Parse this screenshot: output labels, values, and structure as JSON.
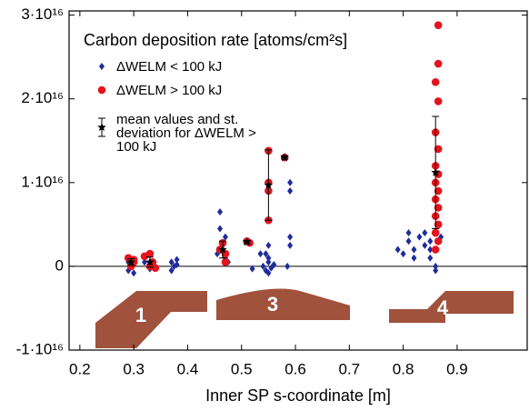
{
  "chart_data": {
    "type": "scatter",
    "title": "Carbon deposition rate [atoms/cm²s]",
    "x_label": "Inner SP s-coordinate [m]",
    "xlim": [
      0.18,
      1.03
    ],
    "xticks": [
      0.2,
      0.3,
      0.4,
      0.5,
      0.6,
      0.7,
      0.8,
      0.9
    ],
    "ylim": [
      -1e+16,
      3.05e+16
    ],
    "yticks": [
      {
        "value": -1e+16,
        "label": "-1·10¹⁶"
      },
      0,
      {
        "value": 1e+16,
        "label": "1·10¹⁶"
      },
      {
        "value": 2e+16,
        "label": "2·10¹⁶"
      },
      {
        "value": 3e+16,
        "label": "3·10¹⁶"
      }
    ],
    "annotations": [
      "1",
      "3",
      "4"
    ],
    "series": [
      {
        "name": "ΔWELM < 100 kJ",
        "color": "#1f2c9c",
        "marker": "diamond",
        "x": [
          0.29,
          0.29,
          0.3,
          0.3,
          0.295,
          0.32,
          0.33,
          0.335,
          0.37,
          0.37,
          0.38,
          0.38,
          0.375,
          0.46,
          0.46,
          0.465,
          0.47,
          0.47,
          0.475,
          0.455,
          0.51,
          0.52,
          0.54,
          0.545,
          0.55,
          0.55,
          0.555,
          0.55,
          0.545,
          0.56,
          0.55,
          0.535,
          0.59,
          0.59,
          0.59,
          0.59,
          0.585,
          0.79,
          0.8,
          0.81,
          0.81,
          0.82,
          0.83,
          0.84,
          0.84,
          0.85,
          0.85,
          0.86,
          0.86,
          0.85,
          0.87,
          0.82
        ],
        "values": [
          500000000000000.0,
          -500000000000000.0,
          -800000000000000.0,
          200000000000000.0,
          0,
          500000000000000.0,
          -300000000000000.0,
          0,
          500000000000000.0,
          -500000000000000.0,
          800000000000000.0,
          200000000000000.0,
          0,
          6500000000000000.0,
          4500000000000000.0,
          2500000000000000.0,
          1000000000000000.0,
          3500000000000000.0,
          500000000000000.0,
          1500000000000000.0,
          3000000000000000.0,
          -300000000000000.0,
          0,
          -500000000000000.0,
          500000000000000.0,
          1000000000000000.0,
          -200000000000000.0,
          2500000000000000.0,
          1500000000000000.0,
          200000000000000.0,
          -800000000000000.0,
          1500000000000000.0,
          1e+16,
          9000000000000000.0,
          3500000000000000.0,
          2500000000000000.0,
          0,
          2000000000000000.0,
          1500000000000000.0,
          4000000000000000.0,
          3000000000000000.0,
          2000000000000000.0,
          3500000000000000.0,
          4000000000000000.0,
          2500000000000000.0,
          1000000000000000.0,
          2000000000000000.0,
          0,
          -500000000000000.0,
          3000000000000000.0,
          3500000000000000.0,
          1000000000000000.0
        ]
      },
      {
        "name": "ΔWELM > 100 kJ",
        "color": "#e3141c",
        "marker": "circle",
        "x": [
          0.29,
          0.3,
          0.295,
          0.3,
          0.32,
          0.33,
          0.335,
          0.34,
          0.33,
          0.46,
          0.47,
          0.47,
          0.465,
          0.51,
          0.515,
          0.55,
          0.55,
          0.55,
          0.55,
          0.58,
          0.865,
          0.865,
          0.86,
          0.865,
          0.86,
          0.865,
          0.86,
          0.865,
          0.86,
          0.865,
          0.86,
          0.865,
          0.86,
          0.865,
          0.86,
          0.865,
          0.86
        ],
        "values": [
          1000000000000000.0,
          500000000000000.0,
          0,
          800000000000000.0,
          1200000000000000.0,
          1500000000000000.0,
          500000000000000.0,
          -200000000000000.0,
          0,
          2000000000000000.0,
          1500000000000000.0,
          500000000000000.0,
          2800000000000000.0,
          3000000000000000.0,
          2800000000000000.0,
          1.38e+16,
          1e+16,
          5500000000000000.0,
          9000000000000000.0,
          1.3e+16,
          2.88e+16,
          2.42e+16,
          2.2e+16,
          1.97e+16,
          1.6e+16,
          1.4e+16,
          1.2e+16,
          1.1e+16,
          1e+16,
          9000000000000000.0,
          8000000000000000.0,
          7000000000000000.0,
          6000000000000000.0,
          5000000000000000.0,
          4000000000000000.0,
          3000000000000000.0,
          2000000000000000.0
        ]
      },
      {
        "name": "mean values and st. deviation for ΔWELM > 100 kJ",
        "color": "#000000",
        "marker": "star",
        "x": [
          0.295,
          0.33,
          0.465,
          0.51,
          0.55,
          0.58,
          0.86
        ],
        "values": [
          500000000000000.0,
          500000000000000.0,
          2000000000000000.0,
          2900000000000000.0,
          9700000000000000.0,
          1.3e+16,
          1.12e+16
        ],
        "errors": [
          400000000000000.0,
          600000000000000.0,
          1000000000000000.0,
          200000000000000.0,
          4200000000000000.0,
          200000000000000.0,
          6700000000000000.0
        ]
      }
    ]
  }
}
